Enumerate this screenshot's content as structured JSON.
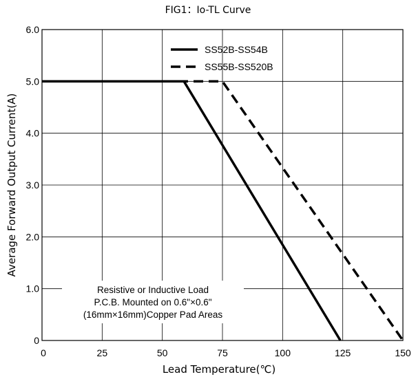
{
  "chart_data": {
    "type": "line",
    "title": "FIG1：Io-TL Curve",
    "xlabel": "Lead Temperature(℃)",
    "ylabel": "Average Forward Output Current(A)",
    "xlim": [
      0,
      150
    ],
    "ylim": [
      0,
      6
    ],
    "x_ticks": [
      0,
      25,
      50,
      75,
      100,
      125,
      150
    ],
    "x_tick_labels": [
      "0",
      "25",
      "50",
      "75",
      "100",
      "125",
      "150"
    ],
    "y_ticks": [
      0,
      1,
      2,
      3,
      4,
      5,
      6
    ],
    "y_tick_labels": [
      "0",
      "1.0",
      "2.0",
      "3.0",
      "4.0",
      "5.0",
      "6.0"
    ],
    "grid": true,
    "legend_position": "top-right",
    "series": [
      {
        "name": "SS52B-SS54B",
        "style": "solid",
        "color": "#000000",
        "x": [
          0,
          59,
          124
        ],
        "y": [
          5,
          5,
          0
        ]
      },
      {
        "name": "SS55B-SS520B",
        "style": "dashed",
        "color": "#000000",
        "x": [
          0,
          75,
          150
        ],
        "y": [
          5,
          5,
          0
        ]
      }
    ],
    "annotation": [
      "Resistive or Inductive Load",
      "P.C.B. Mounted on 0.6\"×0.6\"",
      "(16mm×16mm)Copper Pad Areas"
    ]
  }
}
